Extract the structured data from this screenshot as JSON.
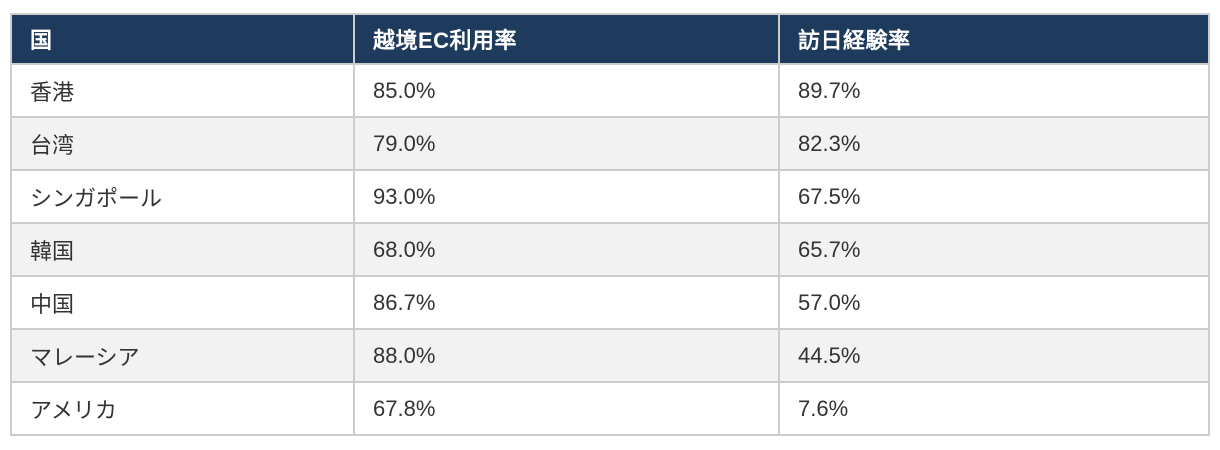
{
  "colors": {
    "header_bg": "#1e3a5c",
    "header_text": "#ffffff",
    "row_bg": "#ffffff",
    "row_alt_bg": "#f2f2f2",
    "border": "#cccccc",
    "cell_text": "#333333"
  },
  "chart_data": {
    "type": "table",
    "title": "",
    "columns": [
      "国",
      "越境EC利用率",
      "訪日経験率"
    ],
    "rows": [
      {
        "country": "香港",
        "ec_rate": "85.0%",
        "visit_rate": "89.7%"
      },
      {
        "country": "台湾",
        "ec_rate": "79.0%",
        "visit_rate": "82.3%"
      },
      {
        "country": "シンガポール",
        "ec_rate": "93.0%",
        "visit_rate": "67.5%"
      },
      {
        "country": "韓国",
        "ec_rate": "68.0%",
        "visit_rate": "65.7%"
      },
      {
        "country": "中国",
        "ec_rate": "86.7%",
        "visit_rate": "57.0%"
      },
      {
        "country": "マレーシア",
        "ec_rate": "88.0%",
        "visit_rate": "44.5%"
      },
      {
        "country": "アメリカ",
        "ec_rate": "67.8%",
        "visit_rate": "7.6%"
      }
    ],
    "categories": [
      "香港",
      "台湾",
      "シンガポール",
      "韓国",
      "中国",
      "マレーシア",
      "アメリカ"
    ],
    "series": [
      {
        "name": "越境EC利用率",
        "values": [
          85.0,
          79.0,
          93.0,
          68.0,
          86.7,
          88.0,
          67.8
        ]
      },
      {
        "name": "訪日経験率",
        "values": [
          89.7,
          82.3,
          67.5,
          65.7,
          57.0,
          44.5,
          7.6
        ]
      }
    ]
  }
}
